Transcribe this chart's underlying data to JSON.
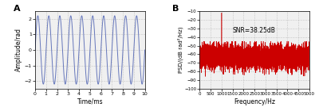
{
  "panel_a": {
    "label": "A",
    "amplitude": 2.2,
    "freq_cycles_per_ms": 1.0,
    "t_start": 0,
    "t_end": 10,
    "num_points": 3000,
    "xlabel": "Time/ms",
    "ylabel": "Amplitude/rad",
    "xlim": [
      0,
      10
    ],
    "ylim": [
      -2.5,
      2.5
    ],
    "yticks": [
      -2,
      -1,
      0,
      1,
      2
    ],
    "xticks": [
      0,
      1,
      2,
      3,
      4,
      5,
      6,
      7,
      8,
      9,
      10
    ],
    "line_color": "#6677bb",
    "line_width": 0.7,
    "bg_color": "#f0f0f0"
  },
  "panel_b": {
    "label": "B",
    "signal_freq": 1000,
    "noise_floor": -63,
    "noise_std": 7,
    "signal_peak": -12,
    "snr_text": "SNR=38.25dB",
    "snr_x": 1500,
    "snr_y": -35,
    "xlabel": "Frequency/Hz",
    "ylabel": "PSD/(dB rad²/Hz)",
    "xlim": [
      0,
      5000
    ],
    "ylim": [
      -100,
      -10
    ],
    "yticks": [
      -100,
      -90,
      -80,
      -70,
      -60,
      -50,
      -40,
      -30,
      -20,
      -10
    ],
    "xticks": [
      0,
      500,
      1000,
      1500,
      2000,
      2500,
      3000,
      3500,
      4000,
      4500,
      5000
    ],
    "line_color": "#cc0000",
    "line_width": 0.4,
    "num_points": 5000,
    "bg_color": "#f0f0f0"
  }
}
